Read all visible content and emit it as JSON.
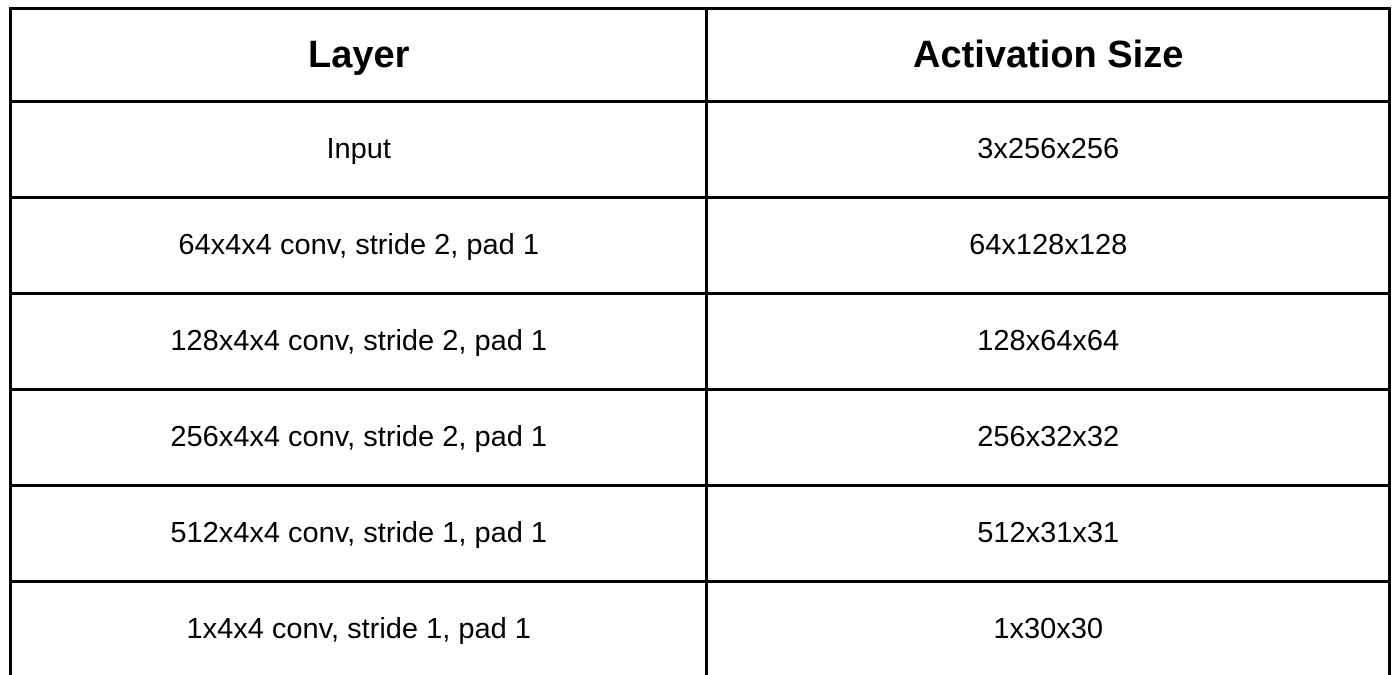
{
  "table": {
    "columns": [
      {
        "label": "Layer"
      },
      {
        "label": "Activation Size"
      }
    ],
    "rows": [
      {
        "layer": "Input",
        "activation_size": "3x256x256"
      },
      {
        "layer": "64x4x4 conv, stride 2, pad 1",
        "activation_size": "64x128x128"
      },
      {
        "layer": "128x4x4 conv, stride 2, pad 1",
        "activation_size": "128x64x64"
      },
      {
        "layer": "256x4x4 conv, stride 2, pad 1",
        "activation_size": "256x32x32"
      },
      {
        "layer": "512x4x4 conv, stride 1, pad 1",
        "activation_size": "512x31x31"
      },
      {
        "layer": "1x4x4 conv, stride 1, pad 1",
        "activation_size": "1x30x30"
      }
    ]
  }
}
